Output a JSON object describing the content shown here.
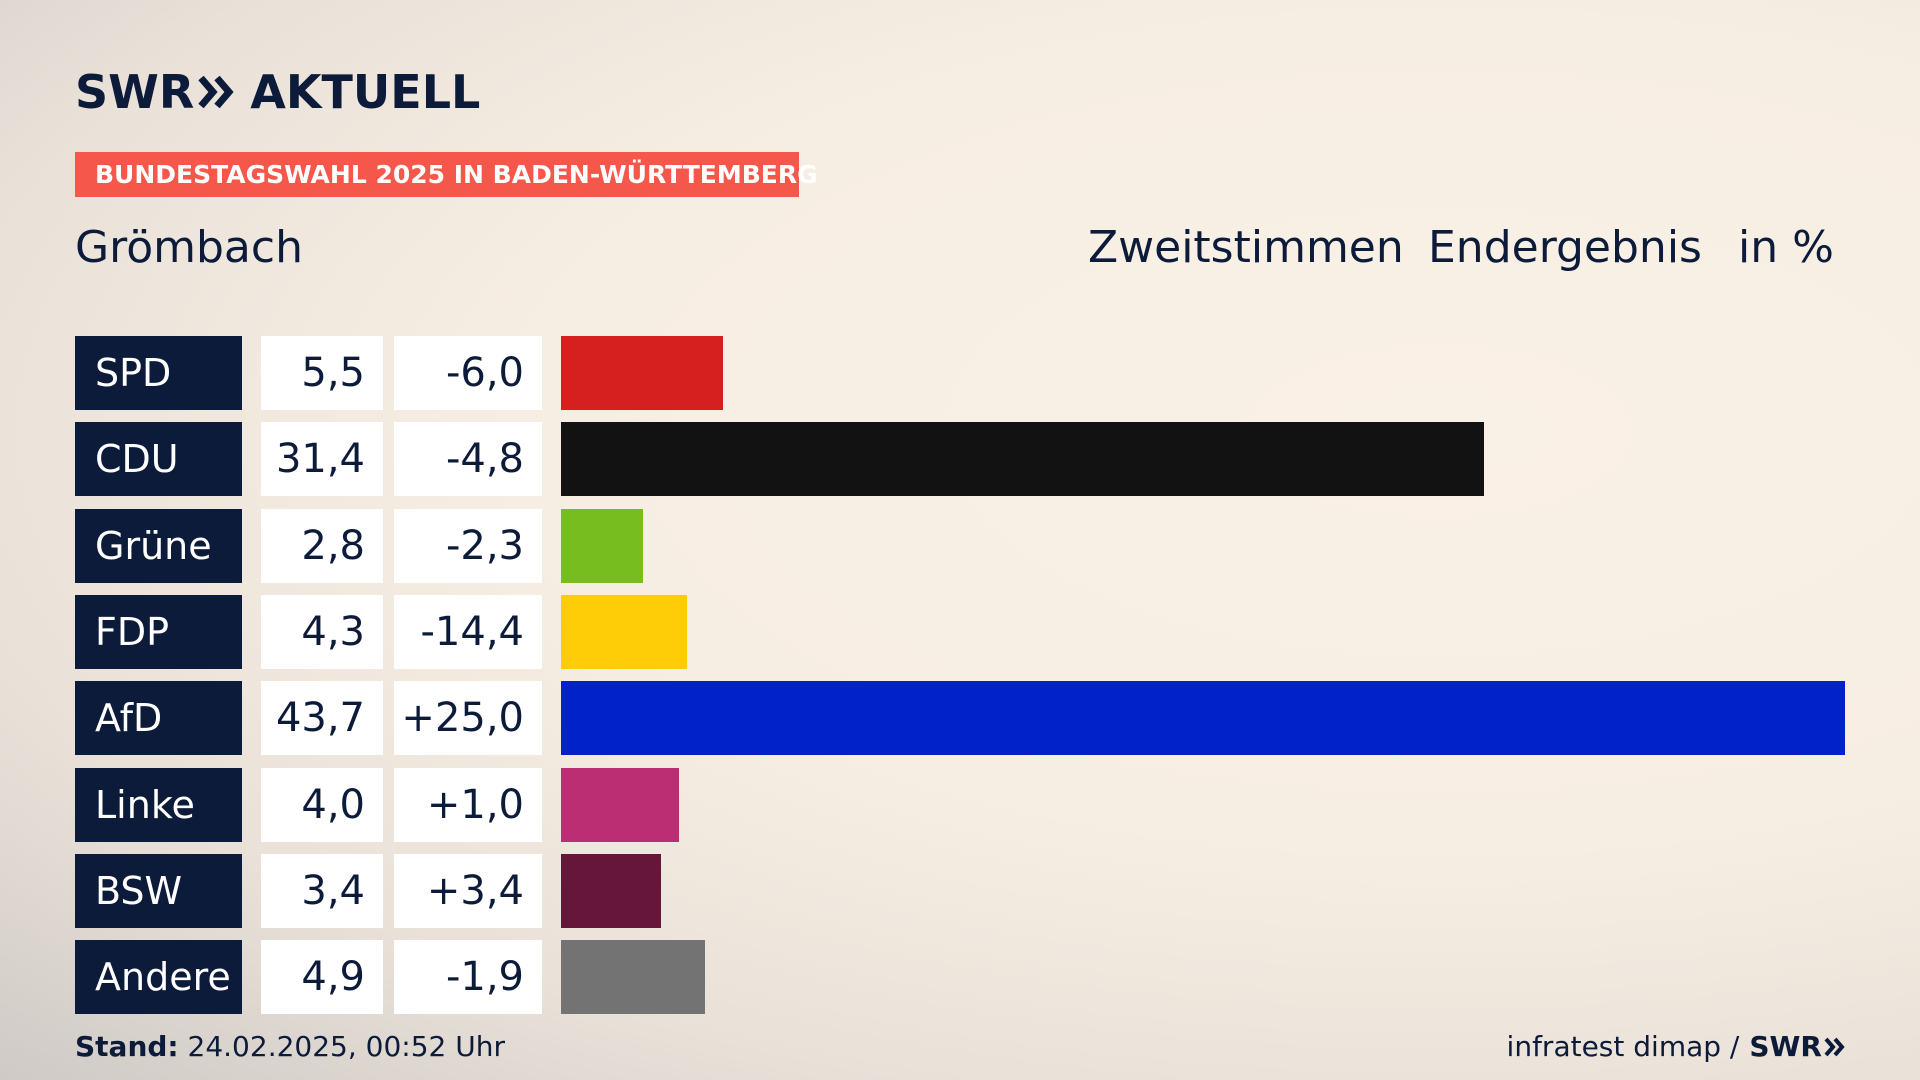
{
  "brand": {
    "logo_left": "SWR",
    "logo_right": "AKTUELL",
    "footer_logo": "SWR"
  },
  "tag": "BUNDESTAGSWAHL 2025 IN BADEN-WÜRTTEMBERG",
  "place": "Grömbach",
  "header": {
    "vote_type": "Zweitstimmen",
    "status": "Endergebnis",
    "unit": "in %"
  },
  "footer": {
    "stand_label": "Stand:",
    "stand_value": "24.02.2025, 00:52 Uhr",
    "source": "infratest dimap /"
  },
  "colors": {
    "navy": "#0d1b3a",
    "tag": "#f5574a"
  },
  "chart_data": {
    "type": "bar",
    "categories": [
      "SPD",
      "CDU",
      "Grüne",
      "FDP",
      "AfD",
      "Linke",
      "BSW",
      "Andere"
    ],
    "values": [
      5.5,
      31.4,
      2.8,
      4.3,
      43.7,
      4.0,
      3.4,
      4.9
    ],
    "values_text": [
      "5,5",
      "31,4",
      "2,8",
      "4,3",
      "43,7",
      "4,0",
      "3,4",
      "4,9"
    ],
    "changes_text": [
      "-6,0",
      "-4,8",
      "-2,3",
      "-14,4",
      "+25,0",
      "+1,0",
      "+3,4",
      "-1,9"
    ],
    "colors": [
      "#d61f1f",
      "#121212",
      "#76bd1d",
      "#ffcd08",
      "#0022c8",
      "#bc2e74",
      "#661638",
      "#737373"
    ],
    "xlim": [
      0,
      43.7
    ]
  }
}
